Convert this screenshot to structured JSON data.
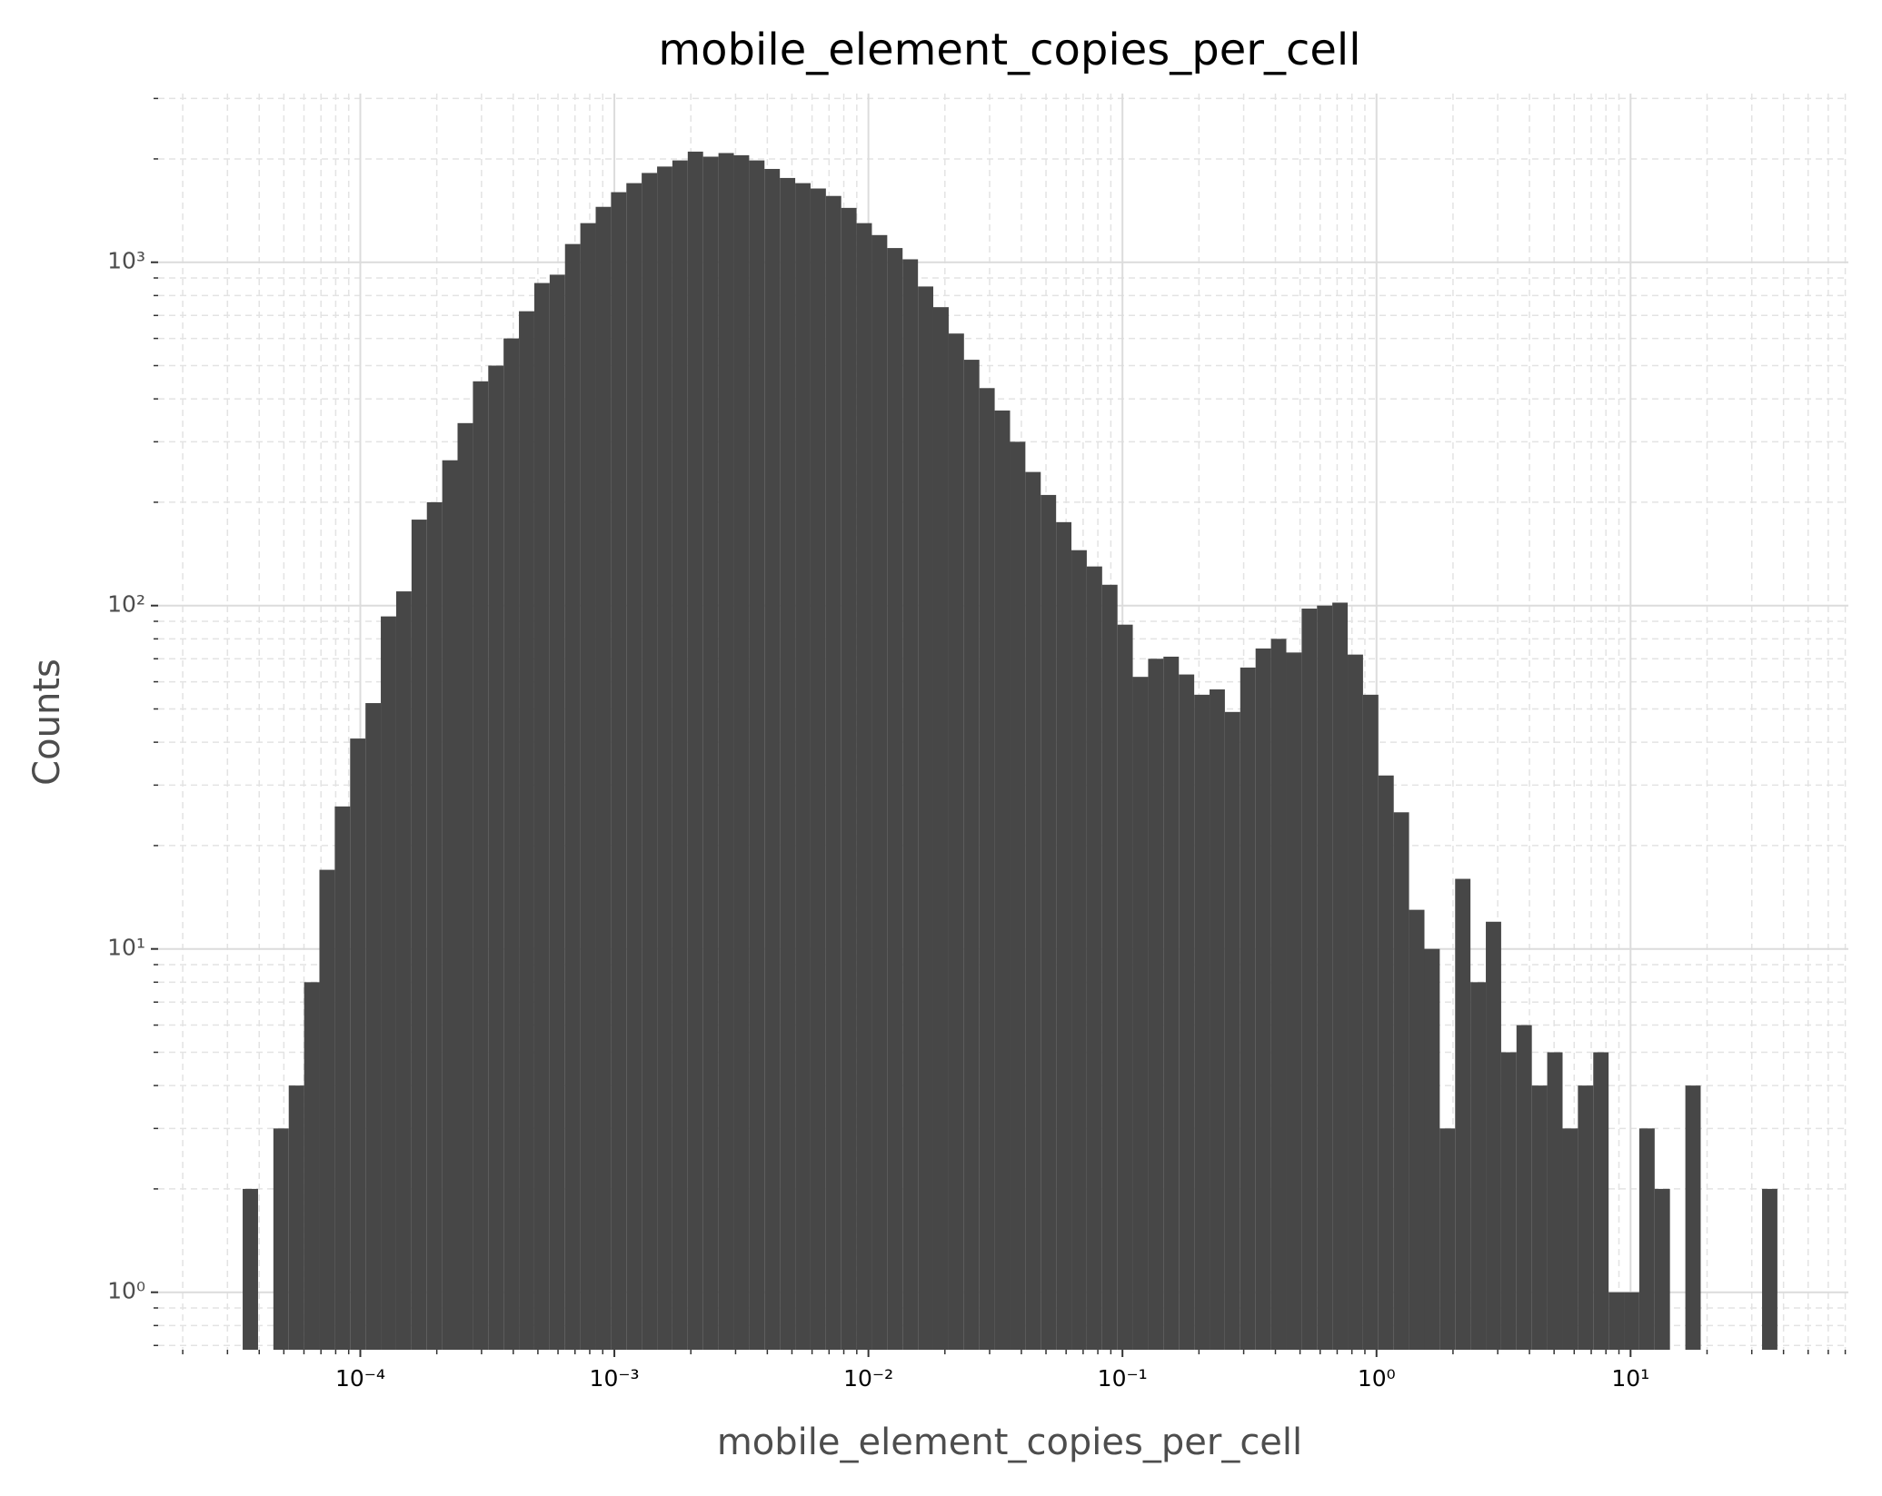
{
  "chart_data": {
    "type": "histogram",
    "title": "mobile_element_copies_per_cell",
    "x_label": "mobile_element_copies_per_cell",
    "y_label": "Counts",
    "color": "#474747",
    "xscale": "log",
    "yscale": "log",
    "grid": true,
    "bins": [
      3.443e-05,
      3.958e-05,
      4.548e-05,
      5.227e-05,
      6.007e-05,
      6.902e-05,
      7.934e-05,
      9.118e-05,
      0.0001048,
      0.0001204,
      0.0001384,
      0.0001591,
      0.0001828,
      0.0002101,
      0.0002414,
      0.0002775,
      0.0003189,
      0.0003664,
      0.0004211,
      0.000484,
      0.0005563,
      0.0006393,
      0.0007345,
      0.0008443,
      0.0009701,
      0.001115,
      0.001281,
      0.001473,
      0.001692,
      0.001945,
      0.002235,
      0.002569,
      0.002953,
      0.003393,
      0.003899,
      0.004481,
      0.005151,
      0.005919,
      0.006802,
      0.007816,
      0.008982,
      0.01032,
      0.01186,
      0.01363,
      0.01567,
      0.018,
      0.0207,
      0.02378,
      0.02733,
      0.03141,
      0.0361,
      0.04148,
      0.04768,
      0.0548,
      0.06297,
      0.07236,
      0.08318,
      0.09559,
      0.1098,
      0.1262,
      0.145,
      0.1667,
      0.1916,
      0.2202,
      0.253,
      0.2908,
      0.3342,
      0.3842,
      0.4415,
      0.5074,
      0.5831,
      0.67,
      0.77,
      0.8849,
      1.017,
      1.169,
      1.343,
      1.544,
      1.774,
      2.039,
      2.343,
      2.693,
      3.095,
      3.556,
      4.087,
      4.697,
      5.4,
      6.205,
      7.131,
      8.195,
      9.417,
      10.82,
      12.44,
      14.29,
      16.43,
      18.88,
      21.7,
      24.94,
      28.66,
      32.93,
      37.84
    ],
    "values": [
      2,
      0,
      3,
      4,
      8,
      17,
      26,
      41,
      52,
      93,
      110,
      178,
      200,
      265,
      340,
      450,
      500,
      600,
      720,
      870,
      920,
      1130,
      1300,
      1450,
      1600,
      1700,
      1820,
      1900,
      1980,
      2100,
      2030,
      2080,
      2050,
      1980,
      1870,
      1760,
      1700,
      1640,
      1560,
      1440,
      1300,
      1200,
      1100,
      1020,
      850,
      740,
      620,
      520,
      430,
      370,
      300,
      245,
      210,
      175,
      145,
      130,
      115,
      88,
      62,
      70,
      71,
      63,
      55,
      57,
      49,
      66,
      75,
      80,
      73,
      98,
      100,
      102,
      72,
      55,
      32,
      25,
      13,
      10,
      3,
      16,
      8,
      12,
      5,
      6,
      4,
      5,
      3,
      4,
      5,
      1,
      1,
      3,
      2,
      0,
      4,
      0,
      0,
      0,
      0,
      2
    ],
    "xlim": [
      1.6e-05,
      72
    ],
    "ylim": [
      0.68,
      3100
    ],
    "xticks": [
      {
        "value": 0.0001,
        "label": "10⁻⁴"
      },
      {
        "value": 0.001,
        "label": "10⁻³"
      },
      {
        "value": 0.01,
        "label": "10⁻²"
      },
      {
        "value": 0.1,
        "label": "10⁻¹"
      },
      {
        "value": 1,
        "label": "10⁰"
      },
      {
        "value": 10,
        "label": "10¹"
      }
    ],
    "yticks": [
      {
        "value": 1,
        "label": "10⁰"
      },
      {
        "value": 10,
        "label": "10¹"
      },
      {
        "value": 100,
        "label": "10²"
      },
      {
        "value": 1000,
        "label": "10³"
      }
    ],
    "xminorticks": [
      2e-05,
      3e-05,
      4e-05,
      5e-05,
      6e-05,
      7e-05,
      8e-05,
      9e-05,
      0.0002,
      0.0003,
      0.0004,
      0.0005,
      0.0006,
      0.0007,
      0.0008,
      0.0009,
      0.002,
      0.003,
      0.004,
      0.005,
      0.006,
      0.007,
      0.008,
      0.009,
      0.02,
      0.03,
      0.04,
      0.05,
      0.06,
      0.07,
      0.08,
      0.09,
      0.2,
      0.3,
      0.4,
      0.5,
      0.6,
      0.7,
      0.8,
      0.9,
      2,
      3,
      4,
      5,
      6,
      7,
      8,
      9,
      20,
      30,
      40,
      50,
      60,
      70
    ],
    "yminorticks": [
      0.7,
      0.8,
      0.9,
      2,
      3,
      4,
      5,
      6,
      7,
      8,
      9,
      20,
      30,
      40,
      50,
      60,
      70,
      80,
      90,
      200,
      300,
      400,
      500,
      600,
      700,
      800,
      900,
      2000,
      3000
    ]
  }
}
